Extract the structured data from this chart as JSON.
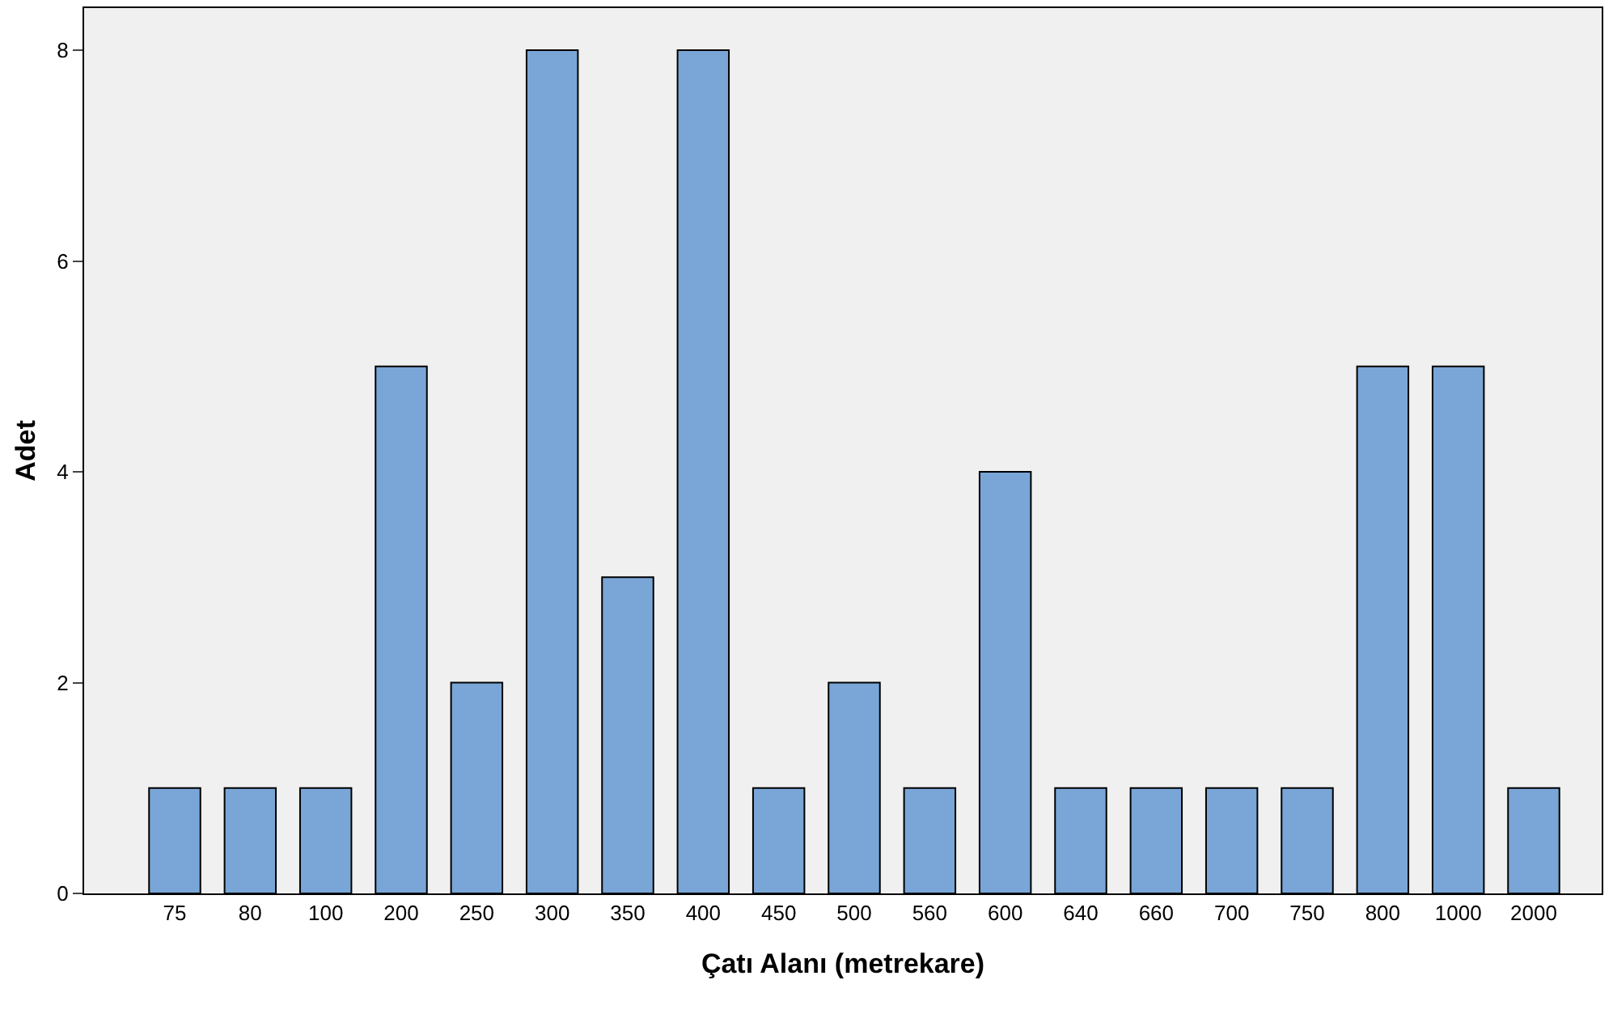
{
  "chart_data": {
    "type": "bar",
    "xlabel": "Çatı Alanı (metrekare)",
    "ylabel": "Adet",
    "categories": [
      "75",
      "80",
      "100",
      "200",
      "250",
      "300",
      "350",
      "400",
      "450",
      "500",
      "560",
      "600",
      "640",
      "660",
      "700",
      "750",
      "800",
      "1000",
      "2000"
    ],
    "values": [
      1,
      1,
      1,
      5,
      2,
      8,
      3,
      8,
      1,
      2,
      1,
      4,
      1,
      1,
      1,
      1,
      5,
      5,
      1
    ],
    "color": "#79a6d6",
    "ylim": [
      0,
      8.4
    ],
    "yticks": [
      0,
      2,
      4,
      6,
      8
    ],
    "grid": false,
    "legend": false
  }
}
